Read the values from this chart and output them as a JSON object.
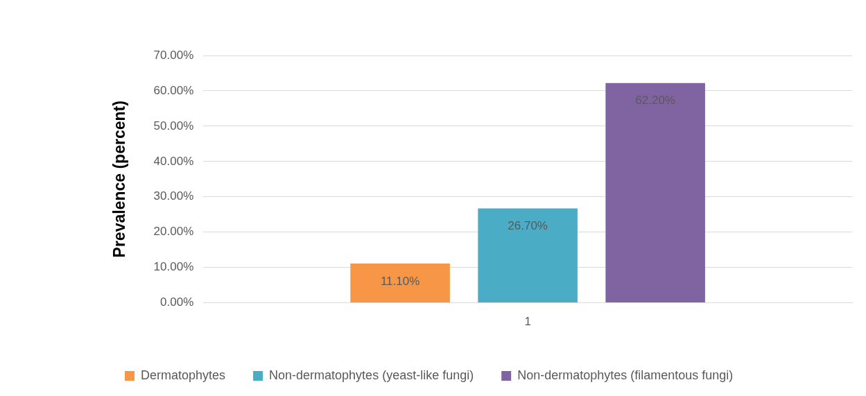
{
  "chart_data": {
    "type": "bar",
    "ylabel": "Prevalence (percent)",
    "categories": [
      "1"
    ],
    "series": [
      {
        "name": "Dermatophytes",
        "color": "#f79646",
        "values": [
          11.1
        ],
        "value_labels": [
          "11.10%"
        ]
      },
      {
        "name": "Non-dermatophytes (yeast-like fungi)",
        "color": "#4bacc6",
        "values": [
          26.7
        ],
        "value_labels": [
          "26.70%"
        ]
      },
      {
        "name": "Non-dermatophytes (filamentous fungi)",
        "color": "#8064a2",
        "values": [
          62.2
        ],
        "value_labels": [
          "62.20%"
        ]
      }
    ],
    "ylim": [
      0,
      70
    ],
    "yticks": [
      {
        "value": 0,
        "label": "0.00%"
      },
      {
        "value": 10,
        "label": "10.00%"
      },
      {
        "value": 20,
        "label": "20.00%"
      },
      {
        "value": 30,
        "label": "30.00%"
      },
      {
        "value": 40,
        "label": "40.00%"
      },
      {
        "value": 50,
        "label": "50.00%"
      },
      {
        "value": 60,
        "label": "60.00%"
      },
      {
        "value": 70,
        "label": "70.00%"
      }
    ],
    "grid": "y",
    "legend": "bottom"
  }
}
